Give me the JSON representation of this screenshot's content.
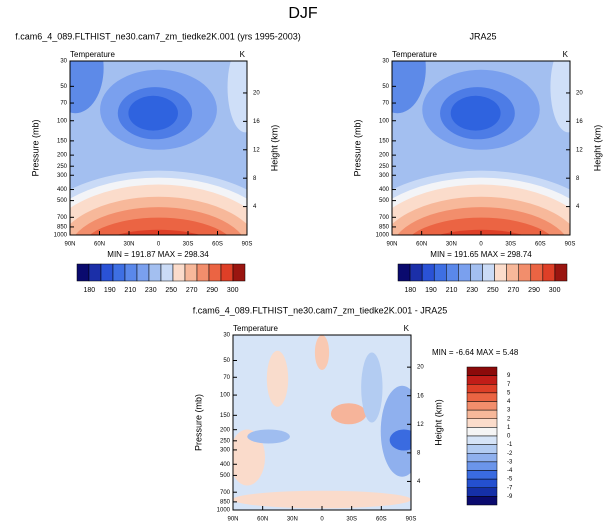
{
  "title": "DJF",
  "chart_data": [
    {
      "type": "contour",
      "title": "f.cam6_4_089.FLTHIST_ne30.cam7_zm_tiedke2K.001 (yrs 1995-2003)",
      "variable": "Temperature",
      "units": "K",
      "ylabel": "Pressure (mb)",
      "y2label": "Height (km)",
      "log_y": true,
      "xlim": [
        90,
        -90
      ],
      "xticks": [
        {
          "value": 90,
          "label": "90N"
        },
        {
          "value": 60,
          "label": "60N"
        },
        {
          "value": 30,
          "label": "30N"
        },
        0,
        {
          "value": -30,
          "label": "30S"
        },
        {
          "value": -60,
          "label": "60S"
        },
        {
          "value": -90,
          "label": "90S"
        }
      ],
      "ylim": [
        1000,
        30
      ],
      "yticks": [
        30,
        50,
        70,
        100,
        150,
        200,
        250,
        300,
        400,
        500,
        700,
        850,
        1000
      ],
      "y2lim": [
        0,
        24.5
      ],
      "y2ticks": [
        20,
        16,
        12,
        8,
        4
      ],
      "minmax": "MIN = 191.87 MAX = 298.34",
      "colorbar": {
        "colors": [
          "#0a0a6e",
          "#1b2fa8",
          "#2a52d6",
          "#3e6fe3",
          "#5a88ea",
          "#7aa0ee",
          "#a3bff0",
          "#cadbf6",
          "#fbdccb",
          "#f7b89a",
          "#f28e6c",
          "#eb6443",
          "#de3f27",
          "#9a1510"
        ],
        "labels": [
          180,
          190,
          210,
          230,
          250,
          270,
          290,
          300
        ]
      }
    },
    {
      "type": "contour",
      "title": "JRA25",
      "variable": "Temperature",
      "units": "K",
      "ylabel": "Pressure (mb)",
      "y2label": "Height (km)",
      "log_y": true,
      "xlim": [
        90,
        -90
      ],
      "xticks": [
        {
          "value": 90,
          "label": "90N"
        },
        {
          "value": 60,
          "label": "60N"
        },
        {
          "value": 30,
          "label": "30N"
        },
        0,
        {
          "value": -30,
          "label": "30S"
        },
        {
          "value": -60,
          "label": "60S"
        },
        {
          "value": -90,
          "label": "90S"
        }
      ],
      "ylim": [
        1000,
        30
      ],
      "yticks": [
        30,
        50,
        70,
        100,
        150,
        200,
        250,
        300,
        400,
        500,
        700,
        850,
        1000
      ],
      "y2lim": [
        0,
        24.5
      ],
      "y2ticks": [
        20,
        16,
        12,
        8,
        4
      ],
      "minmax": "MIN = 191.65 MAX = 298.74",
      "colorbar": {
        "colors": [
          "#0a0a6e",
          "#1b2fa8",
          "#2a52d6",
          "#3e6fe3",
          "#5a88ea",
          "#7aa0ee",
          "#a3bff0",
          "#cadbf6",
          "#fbdccb",
          "#f7b89a",
          "#f28e6c",
          "#eb6443",
          "#de3f27",
          "#9a1510"
        ],
        "labels": [
          180,
          190,
          210,
          230,
          250,
          270,
          290,
          300
        ]
      }
    },
    {
      "type": "contour",
      "title": "f.cam6_4_089.FLTHIST_ne30.cam7_zm_tiedke2K.001 - JRA25",
      "variable": "Temperature",
      "units": "K",
      "ylabel": "Pressure (mb)",
      "y2label": "Height (km)",
      "log_y": true,
      "xlim": [
        90,
        -90
      ],
      "xticks": [
        {
          "value": 90,
          "label": "90N"
        },
        {
          "value": 60,
          "label": "60N"
        },
        {
          "value": 30,
          "label": "30N"
        },
        0,
        {
          "value": -30,
          "label": "30S"
        },
        {
          "value": -60,
          "label": "60S"
        },
        {
          "value": -90,
          "label": "90S"
        }
      ],
      "ylim": [
        1000,
        30
      ],
      "yticks": [
        30,
        50,
        70,
        100,
        150,
        200,
        250,
        300,
        400,
        500,
        700,
        850,
        1000
      ],
      "y2lim": [
        0,
        24.5
      ],
      "y2ticks": [
        20,
        16,
        12,
        8,
        4
      ],
      "minmax": "MIN = -6.64 MAX = 5.48",
      "colorbar": {
        "colors": [
          "#8c0a0a",
          "#c11d18",
          "#de3f27",
          "#eb6443",
          "#f28e6c",
          "#f7b89a",
          "#fbdccb",
          "#f5f5f5",
          "#d6e4f7",
          "#b3ccf2",
          "#8fb0ee",
          "#6b95ea",
          "#3a6be0",
          "#2450d0",
          "#1530a8",
          "#0a0a6e"
        ],
        "labels": [
          9,
          7,
          5,
          4,
          3,
          2,
          1,
          0,
          -1,
          -2,
          -3,
          -4,
          -5,
          -7,
          -9
        ]
      }
    }
  ]
}
